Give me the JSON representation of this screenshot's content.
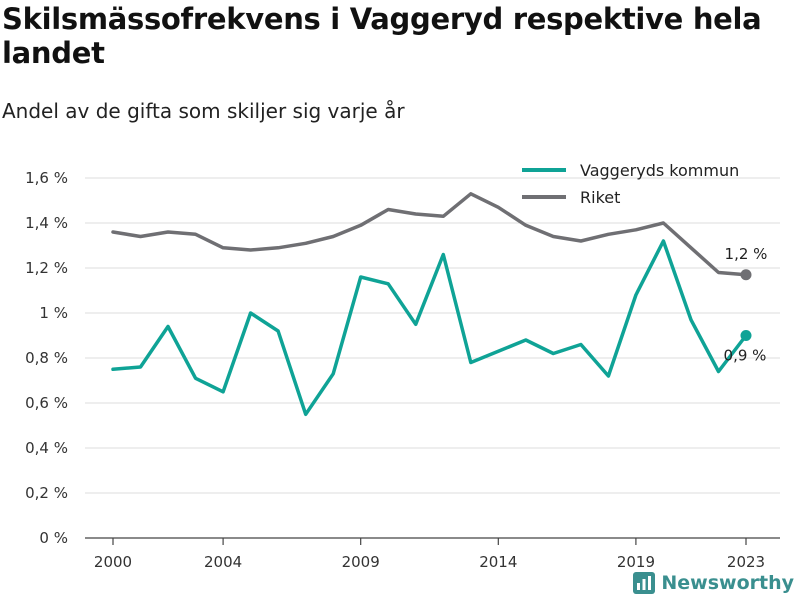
{
  "header": {
    "title": "Skilsmässofrekvens i Vaggeryd respektive hela landet",
    "subtitle": "Andel av de gifta som skiljer sig varje år"
  },
  "brand": {
    "name": "Newsworthy",
    "icon": "bar-chart-icon"
  },
  "colors": {
    "vaggeryd": "#0fa396",
    "riket": "#6f6f73",
    "grid": "#dddddd"
  },
  "chart_data": {
    "type": "line",
    "title": "Skilsmässofrekvens i Vaggeryd respektive hela landet",
    "subtitle": "Andel av de gifta som skiljer sig varje år",
    "xlabel": "",
    "ylabel": "",
    "x": [
      2000,
      2001,
      2002,
      2003,
      2004,
      2005,
      2006,
      2007,
      2008,
      2009,
      2010,
      2011,
      2012,
      2013,
      2014,
      2015,
      2016,
      2017,
      2018,
      2019,
      2020,
      2021,
      2022,
      2023
    ],
    "x_ticks": [
      2000,
      2004,
      2009,
      2014,
      2019,
      2023
    ],
    "x_tick_labels": [
      "2000",
      "2004",
      "2009",
      "2014",
      "2019",
      "2023"
    ],
    "y_ticks": [
      0,
      0.2,
      0.4,
      0.6,
      0.8,
      1.0,
      1.2,
      1.4,
      1.6
    ],
    "y_tick_labels": [
      "0 %",
      "0,2 %",
      "0,4 %",
      "0,6 %",
      "0,8 %",
      "1 %",
      "1,2 %",
      "1,4 %",
      "1,6 %"
    ],
    "ylim": [
      0,
      1.6
    ],
    "grid": true,
    "legend_position": "top-right",
    "series": [
      {
        "name": "Vaggeryds kommun",
        "color": "#0fa396",
        "values": [
          0.75,
          0.76,
          0.94,
          0.71,
          0.65,
          1.0,
          0.92,
          0.55,
          0.73,
          1.16,
          1.13,
          0.95,
          1.26,
          0.78,
          0.83,
          0.88,
          0.82,
          0.86,
          0.72,
          1.08,
          1.32,
          0.97,
          0.74,
          0.9
        ],
        "end_label": "0,9 %"
      },
      {
        "name": "Riket",
        "color": "#6f6f73",
        "values": [
          1.36,
          1.34,
          1.36,
          1.35,
          1.29,
          1.28,
          1.29,
          1.31,
          1.34,
          1.39,
          1.46,
          1.44,
          1.43,
          1.53,
          1.47,
          1.39,
          1.34,
          1.32,
          1.35,
          1.37,
          1.4,
          1.29,
          1.18,
          1.17
        ],
        "end_label": "1,2 %"
      }
    ]
  }
}
